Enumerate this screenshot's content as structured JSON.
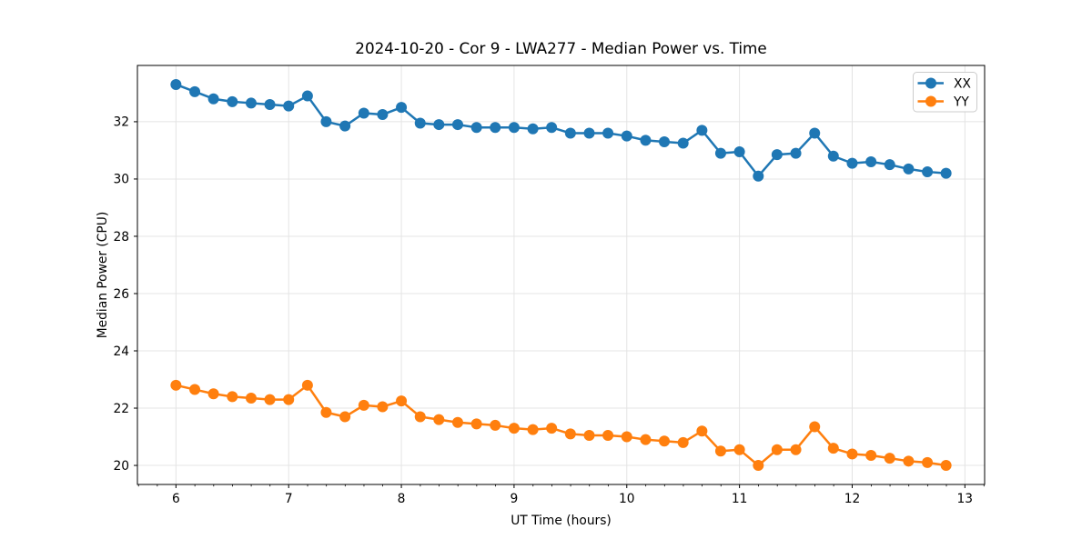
{
  "chart_data": {
    "type": "line",
    "title": "2024-10-20 - Cor 9 - LWA277 - Median Power vs. Time",
    "xlabel": "UT Time (hours)",
    "ylabel": "Median Power (CPU)",
    "x": [
      6.0,
      6.167,
      6.333,
      6.5,
      6.667,
      6.833,
      7.0,
      7.167,
      7.333,
      7.5,
      7.667,
      7.833,
      8.0,
      8.167,
      8.333,
      8.5,
      8.667,
      8.833,
      9.0,
      9.167,
      9.333,
      9.5,
      9.667,
      9.833,
      10.0,
      10.167,
      10.333,
      10.5,
      10.667,
      10.833,
      11.0,
      11.167,
      11.333,
      11.5,
      11.667,
      11.833,
      12.0,
      12.167,
      12.333,
      12.5,
      12.667,
      12.833
    ],
    "series": [
      {
        "name": "XX",
        "color": "#1f77b4",
        "values": [
          33.3,
          33.05,
          32.8,
          32.7,
          32.65,
          32.6,
          32.55,
          32.9,
          32.0,
          31.85,
          32.3,
          32.25,
          32.5,
          31.95,
          31.9,
          31.9,
          31.8,
          31.8,
          31.8,
          31.75,
          31.8,
          31.6,
          31.6,
          31.6,
          31.5,
          31.35,
          31.3,
          31.25,
          31.7,
          30.9,
          30.95,
          30.1,
          30.85,
          30.9,
          31.6,
          30.8,
          30.55,
          30.6,
          30.5,
          30.35,
          30.25,
          30.2
        ]
      },
      {
        "name": "YY",
        "color": "#ff7f0e",
        "values": [
          22.8,
          22.65,
          22.5,
          22.4,
          22.35,
          22.3,
          22.3,
          22.8,
          21.85,
          21.7,
          22.1,
          22.05,
          22.25,
          21.7,
          21.6,
          21.5,
          21.45,
          21.4,
          21.3,
          21.25,
          21.3,
          21.1,
          21.05,
          21.05,
          21.0,
          20.9,
          20.85,
          20.8,
          21.2,
          20.5,
          20.55,
          20.0,
          20.55,
          20.55,
          21.35,
          20.6,
          20.4,
          20.35,
          20.25,
          20.15,
          20.1,
          20.0
        ]
      }
    ],
    "xticks": [
      6,
      7,
      8,
      9,
      10,
      11,
      12,
      13
    ],
    "yticks": [
      20,
      22,
      24,
      26,
      28,
      30,
      32
    ],
    "xlim": [
      5.658,
      13.175
    ],
    "ylim": [
      19.335,
      33.965
    ],
    "x_minor_step": 0.1667,
    "grid": true,
    "grid_color": "#e4e4e4",
    "legend_position": "upper right",
    "legend": [
      "XX",
      "YY"
    ]
  }
}
